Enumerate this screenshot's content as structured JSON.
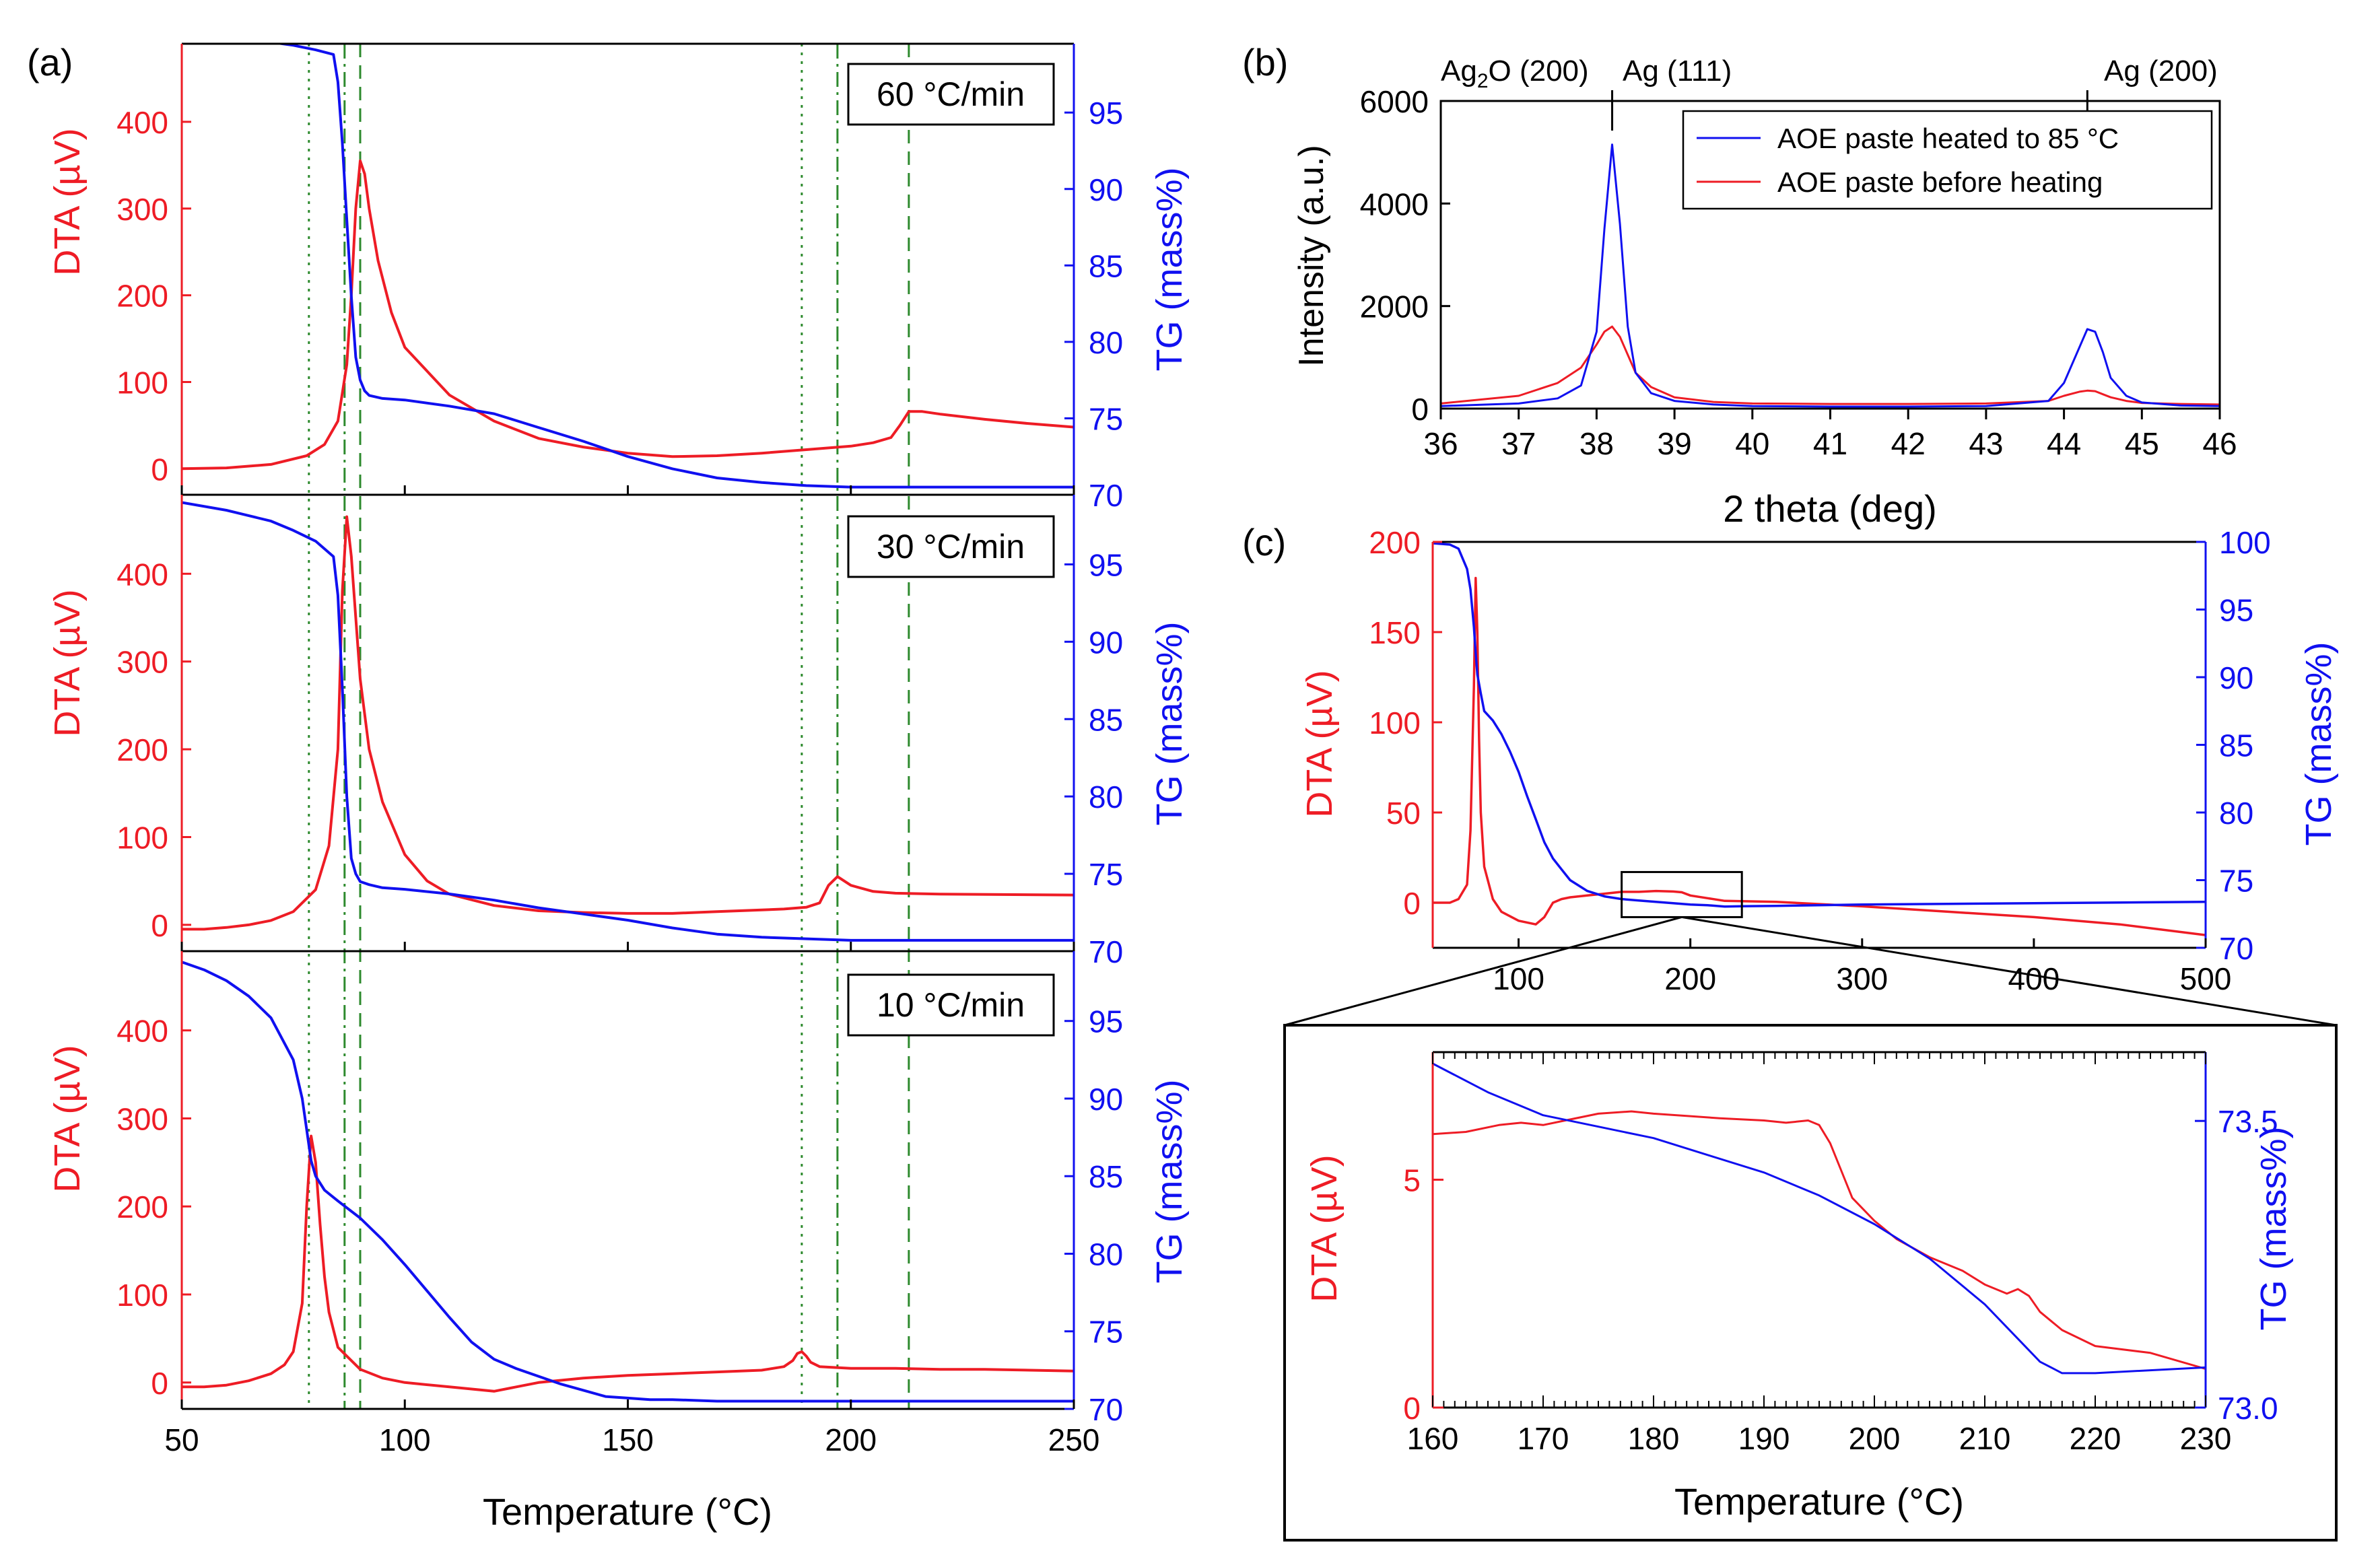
{
  "colors": {
    "red": "#ee1c25",
    "blue": "#1010f0",
    "green": "#2d8a2d",
    "black": "#000000"
  },
  "chart_data": [
    {
      "id": "a",
      "panel_label": "(a)",
      "type": "line",
      "xlabel": "Temperature (°C)",
      "xlim": [
        50,
        250
      ],
      "xticks": [
        50,
        100,
        150,
        200,
        250
      ],
      "left_axis": {
        "label": "DTA (µV)",
        "lim": [
          -30,
          490
        ],
        "ticks": [
          0,
          100,
          200,
          300,
          400
        ]
      },
      "right_axis": {
        "label": "TG (mass%)",
        "lim": [
          70,
          99.5
        ],
        "ticks": [
          70,
          75,
          80,
          85,
          90,
          95
        ]
      },
      "vlines": [
        {
          "x": 78.5,
          "style": "dotted"
        },
        {
          "x": 86.5,
          "style": "dashdot"
        },
        {
          "x": 90,
          "style": "dashed"
        },
        {
          "x": 189,
          "style": "dotted"
        },
        {
          "x": 197,
          "style": "dashdot"
        },
        {
          "x": 213,
          "style": "dashed"
        }
      ],
      "subplots": [
        {
          "rate_label": "60 °C/min",
          "dta": {
            "x": [
              50,
              60,
              70,
              78,
              82,
              85,
              87,
              88,
              89,
              90,
              91,
              92,
              94,
              97,
              100,
              110,
              120,
              130,
              140,
              150,
              160,
              170,
              180,
              190,
              200,
              205,
              209,
              211,
              213,
              216,
              220,
              230,
              240,
              250
            ],
            "y": [
              0,
              1,
              5,
              15,
              28,
              55,
              120,
              200,
              300,
              355,
              340,
              300,
              240,
              180,
              140,
              85,
              55,
              35,
              25,
              18,
              14,
              15,
              18,
              22,
              26,
              30,
              36,
              50,
              66,
              66,
              63,
              57,
              52,
              48
            ]
          },
          "tg": {
            "x": [
              50,
              60,
              70,
              75,
              80,
              84,
              85,
              86,
              87,
              88,
              89,
              90,
              91,
              92,
              95,
              100,
              110,
              120,
              130,
              140,
              150,
              160,
              170,
              180,
              190,
              200,
              250
            ],
            "y": [
              99.9,
              99.8,
              99.6,
              99.4,
              99.1,
              98.8,
              97,
              93,
              88,
              83,
              79,
              77.5,
              76.8,
              76.5,
              76.3,
              76.2,
              75.8,
              75.3,
              74.4,
              73.5,
              72.5,
              71.7,
              71.1,
              70.8,
              70.6,
              70.5,
              70.5
            ]
          }
        },
        {
          "rate_label": "30 °C/min",
          "dta": {
            "x": [
              50,
              55,
              60,
              65,
              70,
              75,
              80,
              83,
              85,
              86,
              87,
              88,
              89,
              90,
              92,
              95,
              100,
              105,
              110,
              120,
              130,
              140,
              150,
              160,
              170,
              180,
              185,
              190,
              193,
              195,
              197,
              200,
              205,
              210,
              220,
              250
            ],
            "y": [
              -5,
              -5,
              -3,
              0,
              5,
              15,
              40,
              90,
              200,
              380,
              465,
              420,
              350,
              280,
              200,
              140,
              80,
              50,
              35,
              22,
              16,
              14,
              13,
              13,
              15,
              17,
              18,
              20,
              25,
              45,
              55,
              45,
              38,
              36,
              35,
              34
            ]
          },
          "tg": {
            "x": [
              50,
              60,
              70,
              75,
              80,
              84,
              85,
              86,
              87,
              88,
              89,
              90,
              92,
              95,
              100,
              110,
              120,
              130,
              140,
              150,
              160,
              170,
              180,
              190,
              200,
              250
            ],
            "y": [
              99,
              98.5,
              97.8,
              97.2,
              96.5,
              95.5,
              93,
              87,
              80,
              76,
              75,
              74.5,
              74.3,
              74.1,
              74,
              73.7,
              73.3,
              72.8,
              72.4,
              72,
              71.5,
              71.1,
              70.9,
              70.8,
              70.7,
              70.7
            ]
          }
        },
        {
          "rate_label": "10 °C/min",
          "dta": {
            "x": [
              50,
              55,
              60,
              65,
              70,
              73,
              75,
              77,
              78,
              79,
              80,
              81,
              82,
              83,
              85,
              90,
              95,
              100,
              110,
              120,
              130,
              140,
              150,
              160,
              170,
              180,
              185,
              187,
              188,
              189,
              190,
              191,
              193,
              200,
              210,
              220,
              230,
              250
            ],
            "y": [
              -5,
              -5,
              -3,
              2,
              10,
              20,
              35,
              90,
              200,
              280,
              250,
              180,
              120,
              80,
              40,
              15,
              5,
              0,
              -5,
              -10,
              0,
              5,
              8,
              10,
              12,
              14,
              18,
              25,
              33,
              35,
              30,
              23,
              18,
              16,
              16,
              15,
              15,
              13
            ]
          },
          "tg": {
            "x": [
              50,
              55,
              60,
              65,
              70,
              75,
              77,
              79,
              80,
              82,
              85,
              90,
              95,
              100,
              105,
              110,
              115,
              120,
              125,
              130,
              135,
              140,
              145,
              150,
              155,
              160,
              170,
              180,
              200,
              250
            ],
            "y": [
              98.8,
              98.3,
              97.6,
              96.6,
              95.2,
              92.5,
              90,
              86,
              85,
              84.1,
              83.4,
              82.3,
              80.9,
              79.3,
              77.6,
              75.9,
              74.3,
              73.2,
              72.6,
              72.1,
              71.6,
              71.2,
              70.8,
              70.7,
              70.6,
              70.6,
              70.5,
              70.5,
              70.5,
              70.5
            ]
          }
        }
      ]
    },
    {
      "id": "b",
      "panel_label": "(b)",
      "type": "line",
      "xlabel": "2 theta (deg)",
      "ylabel": "Intensity (a.u.)",
      "xlim": [
        36,
        46
      ],
      "ylim": [
        0,
        6000
      ],
      "xticks": [
        36,
        37,
        38,
        39,
        40,
        41,
        42,
        43,
        44,
        45,
        46
      ],
      "yticks": [
        0,
        2000,
        4000,
        6000
      ],
      "top_labels": [
        {
          "x": 37.3,
          "base": "Ag",
          "sub": "2",
          "rest": "O (200)"
        },
        {
          "x": 38.9,
          "text": "Ag (111)"
        },
        {
          "x": 44.9,
          "text": "Ag (200)"
        }
      ],
      "top_ticks": [
        38.2,
        44.3
      ],
      "series": [
        {
          "name": "AOE paste heated to 85 °C",
          "color": "blue",
          "x": [
            36,
            37,
            37.5,
            37.8,
            38.0,
            38.1,
            38.2,
            38.3,
            38.4,
            38.5,
            38.7,
            39,
            39.5,
            40,
            41,
            42,
            43,
            43.8,
            44.0,
            44.2,
            44.3,
            44.4,
            44.5,
            44.6,
            44.8,
            45,
            45.5,
            46
          ],
          "y": [
            50,
            100,
            200,
            450,
            1500,
            3500,
            5150,
            3600,
            1600,
            700,
            300,
            150,
            80,
            50,
            40,
            40,
            50,
            150,
            500,
            1200,
            1550,
            1500,
            1100,
            600,
            250,
            120,
            60,
            50
          ]
        },
        {
          "name": "AOE paste before heating",
          "color": "red",
          "x": [
            36,
            37,
            37.5,
            37.8,
            38.0,
            38.1,
            38.2,
            38.3,
            38.4,
            38.5,
            38.7,
            39,
            39.5,
            40,
            41,
            42,
            43,
            43.8,
            44.0,
            44.2,
            44.3,
            44.4,
            44.5,
            44.6,
            44.8,
            45,
            45.5,
            46
          ],
          "y": [
            100,
            250,
            500,
            800,
            1250,
            1500,
            1600,
            1400,
            1050,
            700,
            420,
            220,
            130,
            100,
            90,
            90,
            100,
            150,
            250,
            330,
            350,
            340,
            280,
            220,
            150,
            110,
            90,
            80
          ]
        }
      ]
    },
    {
      "id": "c",
      "panel_label": "(c)",
      "type": "line",
      "xlim": [
        50,
        500
      ],
      "xticks": [
        100,
        200,
        300,
        400,
        500
      ],
      "left_axis": {
        "label": "DTA (µV)",
        "lim": [
          -25,
          200
        ],
        "ticks": [
          0,
          50,
          100,
          150,
          200
        ]
      },
      "right_axis": {
        "label": "TG (mass%)",
        "lim": [
          70,
          100
        ],
        "ticks": [
          70,
          75,
          80,
          85,
          90,
          95,
          100
        ]
      },
      "zoom_box": {
        "x": [
          160,
          230
        ],
        "dta": [
          -8,
          17
        ]
      },
      "dta": {
        "x": [
          50,
          60,
          65,
          70,
          72,
          74,
          75,
          76,
          77,
          78,
          80,
          85,
          90,
          100,
          110,
          115,
          120,
          125,
          130,
          140,
          150,
          160,
          170,
          180,
          190,
          195,
          200,
          210,
          220,
          250,
          300,
          350,
          400,
          450,
          500
        ],
        "y": [
          0,
          0,
          2,
          10,
          40,
          120,
          180,
          150,
          90,
          50,
          20,
          2,
          -5,
          -10,
          -12,
          -8,
          0,
          2,
          3,
          4,
          5,
          6,
          6,
          6.5,
          6.2,
          5.8,
          4,
          2.5,
          1,
          0.5,
          -2,
          -5,
          -8,
          -12,
          -18
        ]
      },
      "tg": {
        "x": [
          50,
          60,
          65,
          70,
          72,
          74,
          75,
          76,
          78,
          80,
          85,
          90,
          95,
          100,
          105,
          110,
          115,
          120,
          125,
          130,
          140,
          150,
          160,
          170,
          180,
          190,
          200,
          210,
          220,
          230,
          250,
          300,
          350,
          400,
          450,
          500
        ],
        "y": [
          99.9,
          99.8,
          99.5,
          98,
          96.5,
          93.7,
          91.8,
          90.2,
          88.8,
          87.5,
          86.8,
          85.8,
          84.5,
          83,
          81.2,
          79.5,
          77.8,
          76.6,
          75.8,
          75,
          74.2,
          73.8,
          73.6,
          73.5,
          73.4,
          73.3,
          73.2,
          73.15,
          73.05,
          73.07,
          73.1,
          73.2,
          73.25,
          73.3,
          73.35,
          73.4
        ]
      }
    },
    {
      "id": "c-inset",
      "type": "line",
      "xlabel": "Temperature (°C)",
      "xlim": [
        160,
        230
      ],
      "xticks": [
        160,
        170,
        180,
        190,
        200,
        210,
        220,
        230
      ],
      "left_axis": {
        "label": "DTA (µV)",
        "lim": [
          0,
          7.8
        ],
        "ticks": [
          0,
          5
        ]
      },
      "right_axis": {
        "label": "TG (mass%)",
        "lim": [
          73.0,
          73.62
        ],
        "ticks": [
          73.0,
          73.5
        ],
        "tick_labels": [
          "73.0",
          "73.5"
        ]
      },
      "dta": {
        "x": [
          160,
          163,
          166,
          168,
          170,
          172,
          175,
          178,
          180,
          183,
          186,
          190,
          192,
          194,
          195,
          196,
          197,
          198,
          200,
          202,
          205,
          208,
          210,
          212,
          213,
          214,
          215,
          217,
          220,
          225,
          230
        ],
        "y": [
          6.0,
          6.05,
          6.2,
          6.25,
          6.2,
          6.3,
          6.45,
          6.5,
          6.45,
          6.4,
          6.35,
          6.3,
          6.25,
          6.3,
          6.2,
          5.8,
          5.2,
          4.6,
          4.1,
          3.7,
          3.3,
          3.0,
          2.7,
          2.5,
          2.6,
          2.45,
          2.1,
          1.7,
          1.35,
          1.2,
          0.85
        ]
      },
      "tg": {
        "x": [
          160,
          165,
          170,
          175,
          180,
          185,
          190,
          195,
          200,
          205,
          210,
          213,
          215,
          217,
          220,
          225,
          230
        ],
        "y": [
          73.6,
          73.55,
          73.51,
          73.49,
          73.47,
          73.44,
          73.41,
          73.37,
          73.32,
          73.26,
          73.18,
          73.12,
          73.08,
          73.06,
          73.06,
          73.065,
          73.07
        ]
      }
    }
  ]
}
